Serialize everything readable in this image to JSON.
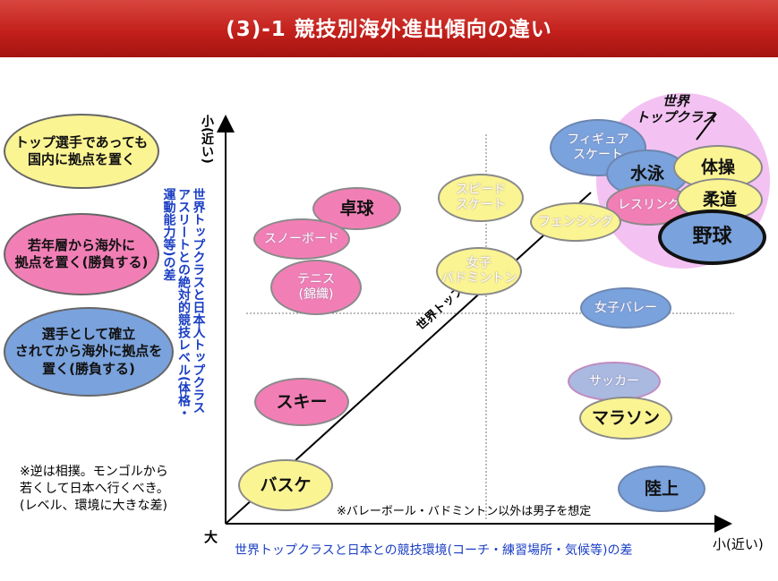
{
  "title": "(3)-1 競技別海外進出傾向の違い",
  "legend": [
    {
      "text": "トップ選手であっても\n国内に拠点を置く",
      "color": "#fbf493"
    },
    {
      "text": "若年層から海外に\n拠点を置く(勝負する)",
      "color": "#f17fb6"
    },
    {
      "text": "選手として確立\nされてから海外に拠点を\n置く(勝負する)",
      "color": "#7aa2dc"
    }
  ],
  "y_axis": {
    "top_label": "小(近い)",
    "title": "世界トップクラスと日本人トップクラス\nアスリートとの絶対的競技レベル(体格・\n運動能力等)の差"
  },
  "x_axis": {
    "origin_label": "大",
    "right_label": "小(近い)",
    "title": "世界トップクラスと日本との競技環境(コーチ・練習場所・気候等)の差"
  },
  "diagonal_label": "世界トップとの差",
  "world_top_label": "世界\nトップクラス",
  "sports": {
    "figure_skating": "フィギュア\nスケート",
    "swimming": "水泳",
    "gymnastics": "体操",
    "wrestling": "レスリング",
    "judo": "柔道",
    "baseball": "野球",
    "fencing": "フェンシング",
    "speed_skating": "スピード\nスケート",
    "table_tennis": "卓球",
    "snowboard": "スノーボード",
    "tennis": "テニス\n(錦織)",
    "womens_badminton": "女子\nバドミントン",
    "womens_volleyball": "女子バレー",
    "soccer": "サッカー",
    "marathon": "マラソン",
    "ski": "スキー",
    "basketball": "バスケ",
    "athletics": "陸上"
  },
  "note_bottom": "※バレーボール・バドミントン以外は男子を想定",
  "note_left": "※逆は相撲。モンゴルから\n若くして日本へ行くべき。\n(レベル、環境に大きな差)"
}
